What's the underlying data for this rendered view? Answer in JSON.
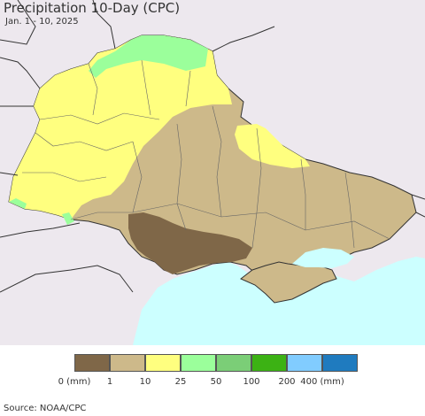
{
  "title": "Precipitation 10-Day (CPC)",
  "subtitle": "Jan. 1 - 10, 2025",
  "source": "Source: NOAA/CPC",
  "colors": {
    "land_outside": "#ede8ee",
    "sea": "#ccffff",
    "border": "#555555"
  },
  "legend": {
    "colors": [
      "#7f6748",
      "#cdb98a",
      "#ffff7f",
      "#9bff9b",
      "#7bce77",
      "#3cb214",
      "#81ccff",
      "#1f7bbf"
    ],
    "ticks": [
      "0 (mm)",
      "1",
      "10",
      "25",
      "50",
      "100",
      "200",
      "400 (mm)"
    ]
  }
}
